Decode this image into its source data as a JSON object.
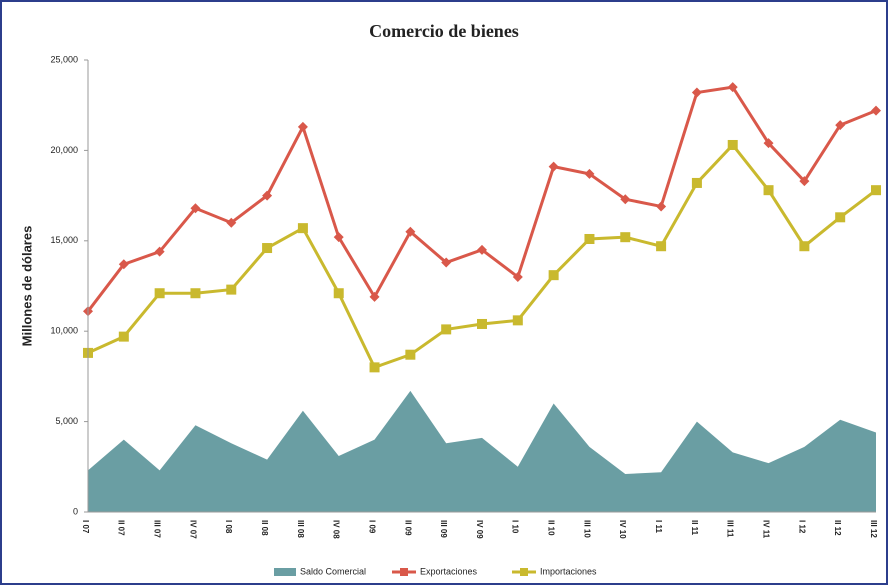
{
  "chart_data": {
    "type": "line",
    "title": "Comercio de bienes",
    "y_label": "Millones de dólares",
    "categories": [
      "I 07",
      "II 07",
      "III 07",
      "IV 07",
      "I 08",
      "II 08",
      "III 08",
      "IV 08",
      "I 09",
      "II 09",
      "III 09",
      "IV 09",
      "I 10",
      "II 10",
      "III 10",
      "IV 10",
      "I 11",
      "II 11",
      "III 11",
      "IV 11",
      "I 12",
      "II 12",
      "III 12"
    ],
    "series": [
      {
        "name": "Saldo Comercial",
        "color": "#6a9ea3",
        "style": "area",
        "values": [
          2300,
          4000,
          2300,
          4800,
          3800,
          2900,
          5600,
          3100,
          4000,
          6700,
          3800,
          4100,
          2500,
          6000,
          3600,
          2100,
          2200,
          5000,
          3300,
          2700,
          3600,
          5100,
          4400
        ]
      },
      {
        "name": "Exportaciones",
        "color": "#d9584a",
        "style": "line",
        "marker": "diamond",
        "values": [
          11100,
          13700,
          14400,
          16800,
          16000,
          17500,
          21300,
          15200,
          11900,
          15500,
          13800,
          14500,
          13000,
          19100,
          18700,
          17300,
          16900,
          23200,
          23500,
          20400,
          18300,
          21400,
          22200
        ]
      },
      {
        "name": "Importaciones",
        "color": "#c9b92e",
        "style": "line",
        "marker": "square",
        "values": [
          8800,
          9700,
          12100,
          12100,
          12300,
          14600,
          15700,
          12100,
          8000,
          8700,
          10100,
          10400,
          10600,
          13100,
          15100,
          15200,
          14700,
          18200,
          20300,
          17800,
          14700,
          16300,
          17800
        ]
      }
    ],
    "ylim": [
      0,
      25000
    ],
    "yticks": [
      0,
      {
        "value": 5000,
        "label": "5,000"
      },
      {
        "value": 10000,
        "label": "10,000"
      },
      {
        "value": 15000,
        "label": "15,000"
      },
      {
        "value": 20000,
        "label": "20,000"
      },
      {
        "value": 25000,
        "label": "25,000"
      }
    ],
    "legend": "bottom"
  }
}
